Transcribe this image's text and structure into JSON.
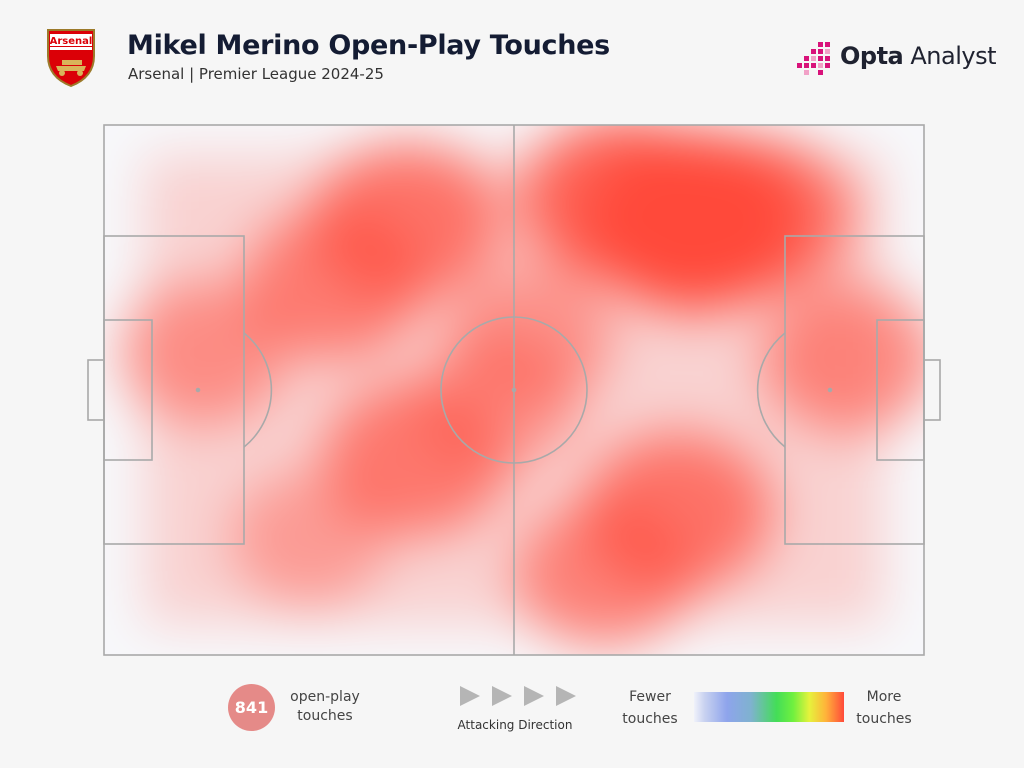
{
  "header": {
    "crest_text": "Arsenal",
    "title": "Mikel Merino Open-Play Touches",
    "subtitle": "Arsenal | Premier League 2024-25",
    "brand_bold": "Opta",
    "brand_light": "Analyst"
  },
  "colors": {
    "background": "#f6f6f6",
    "pitch_lines": "#a9a9a9",
    "title": "#141c33",
    "badge": "#e58a88",
    "crest_red": "#db0007",
    "brand_pink": "#d8127a"
  },
  "chart_data": {
    "type": "heatmap",
    "title": "Mikel Merino Open-Play Touches",
    "subtitle": "Arsenal | Premier League 2024-25",
    "x_range": [
      0,
      100
    ],
    "y_range": [
      0,
      100
    ],
    "scale": [
      "Fewer touches",
      "More touches"
    ],
    "hotspots": [
      {
        "x": 72,
        "y": 18,
        "intensity": 1.0
      },
      {
        "x": 63,
        "y": 14,
        "intensity": 0.75
      },
      {
        "x": 80,
        "y": 17,
        "intensity": 0.6
      },
      {
        "x": 37,
        "y": 18,
        "intensity": 0.6
      },
      {
        "x": 28,
        "y": 30,
        "intensity": 0.5
      },
      {
        "x": 38,
        "y": 63,
        "intensity": 0.55
      },
      {
        "x": 70,
        "y": 73,
        "intensity": 0.6
      },
      {
        "x": 61,
        "y": 85,
        "intensity": 0.45
      },
      {
        "x": 91,
        "y": 44,
        "intensity": 0.45
      },
      {
        "x": 12,
        "y": 43,
        "intensity": 0.35
      },
      {
        "x": 48,
        "y": 52,
        "intensity": 0.25
      },
      {
        "x": 52,
        "y": 40,
        "intensity": 0.3
      },
      {
        "x": 25,
        "y": 78,
        "intensity": 0.2
      }
    ]
  },
  "footer": {
    "touch_count": "841",
    "touch_label": "open-play touches",
    "direction_label": "Attacking Direction",
    "fewer_label": "Fewer touches",
    "more_label": "More touches"
  },
  "icons": [
    "crest-icon",
    "opta-logo-icon",
    "arrow-right-icon"
  ]
}
